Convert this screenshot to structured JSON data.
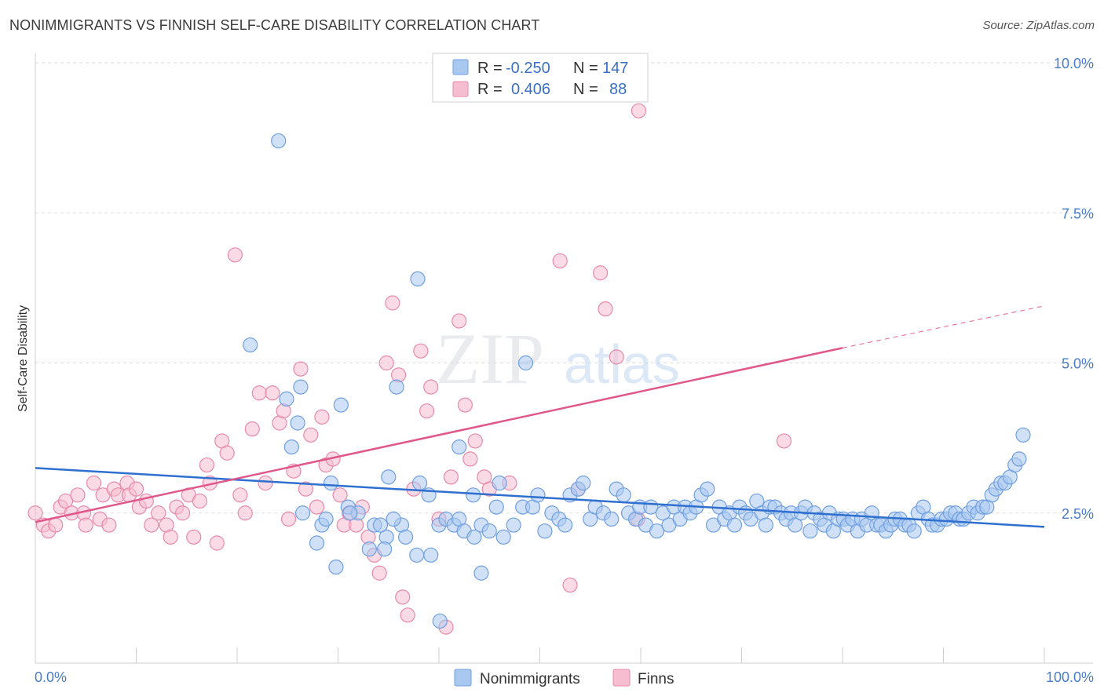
{
  "title": "NONIMMIGRANTS VS FINNISH SELF-CARE DISABILITY CORRELATION CHART",
  "source": "Source: ZipAtlas.com",
  "watermark": {
    "zip": "ZIP",
    "atlas": "atlas"
  },
  "colors": {
    "blue_fill": "#a9c8f0",
    "blue_stroke": "#6f9fe0",
    "blue_line": "#2e6fd0",
    "pink_fill": "#f6bdd0",
    "pink_stroke": "#e889aa",
    "pink_line": "#e0588a",
    "tick_text": "#4a7cc8",
    "grid": "#dddddd"
  },
  "legend": {
    "rows": [
      {
        "r_label": "R =",
        "r_value": "-0.250",
        "n_label": "N =",
        "n_value": "147"
      },
      {
        "r_label": "R =",
        "r_value": "0.406",
        "n_label": "N =",
        "n_value": "88"
      }
    ]
  },
  "chart_data": {
    "type": "scatter",
    "title": "NONIMMIGRANTS VS FINNISH SELF-CARE DISABILITY CORRELATION CHART",
    "xlabel": "",
    "ylabel": "Self-Care Disability",
    "xlim": [
      0,
      100
    ],
    "ylim": [
      0,
      10
    ],
    "x_tick_labels": [
      "0.0%",
      "100.0%"
    ],
    "y_ticks": [
      2.5,
      5.0,
      7.5,
      10.0
    ],
    "y_tick_labels": [
      "2.5%",
      "5.0%",
      "7.5%",
      "10.0%"
    ],
    "grid": true,
    "legend_position": "top-center",
    "series": [
      {
        "name": "Nonimmigrants",
        "color": "#a9c8f0",
        "trend": {
          "x": [
            0,
            100
          ],
          "y": [
            3.25,
            2.27
          ]
        },
        "points": [
          [
            24.1,
            8.7
          ],
          [
            37.9,
            6.4
          ],
          [
            21.3,
            5.3
          ],
          [
            35.8,
            4.6
          ],
          [
            24.9,
            4.4
          ],
          [
            26.3,
            4.6
          ],
          [
            30.3,
            4.3
          ],
          [
            48.6,
            5.0
          ],
          [
            25.4,
            3.6
          ],
          [
            26.0,
            4.0
          ],
          [
            42.0,
            3.6
          ],
          [
            29.3,
            3.0
          ],
          [
            38.1,
            3.0
          ],
          [
            35.0,
            3.1
          ],
          [
            46.0,
            3.0
          ],
          [
            39.0,
            2.8
          ],
          [
            43.4,
            2.8
          ],
          [
            45.7,
            2.6
          ],
          [
            31.0,
            2.6
          ],
          [
            26.5,
            2.5
          ],
          [
            28.4,
            2.3
          ],
          [
            32.0,
            2.5
          ],
          [
            33.6,
            2.3
          ],
          [
            34.8,
            2.1
          ],
          [
            36.3,
            2.3
          ],
          [
            36.7,
            2.1
          ],
          [
            34.6,
            1.9
          ],
          [
            37.8,
            1.8
          ],
          [
            39.2,
            1.8
          ],
          [
            40.0,
            2.3
          ],
          [
            40.7,
            2.4
          ],
          [
            41.5,
            2.3
          ],
          [
            42.0,
            2.4
          ],
          [
            42.5,
            2.2
          ],
          [
            43.5,
            2.1
          ],
          [
            44.2,
            2.3
          ],
          [
            45.0,
            2.2
          ],
          [
            46.4,
            2.1
          ],
          [
            47.4,
            2.3
          ],
          [
            48.3,
            2.6
          ],
          [
            49.3,
            2.6
          ],
          [
            49.8,
            2.8
          ],
          [
            50.5,
            2.2
          ],
          [
            51.2,
            2.5
          ],
          [
            51.9,
            2.4
          ],
          [
            52.5,
            2.3
          ],
          [
            53.0,
            2.8
          ],
          [
            53.8,
            2.9
          ],
          [
            54.3,
            3.0
          ],
          [
            55.0,
            2.4
          ],
          [
            55.5,
            2.6
          ],
          [
            56.3,
            2.5
          ],
          [
            57.1,
            2.4
          ],
          [
            57.6,
            2.9
          ],
          [
            58.3,
            2.8
          ],
          [
            58.8,
            2.5
          ],
          [
            59.5,
            2.4
          ],
          [
            59.9,
            2.6
          ],
          [
            60.5,
            2.3
          ],
          [
            61.0,
            2.6
          ],
          [
            61.6,
            2.2
          ],
          [
            62.2,
            2.5
          ],
          [
            62.8,
            2.3
          ],
          [
            63.3,
            2.6
          ],
          [
            63.9,
            2.4
          ],
          [
            64.4,
            2.6
          ],
          [
            64.9,
            2.5
          ],
          [
            65.5,
            2.6
          ],
          [
            66.0,
            2.8
          ],
          [
            66.6,
            2.9
          ],
          [
            67.2,
            2.3
          ],
          [
            67.8,
            2.6
          ],
          [
            68.3,
            2.4
          ],
          [
            68.8,
            2.5
          ],
          [
            69.3,
            2.3
          ],
          [
            69.8,
            2.6
          ],
          [
            70.4,
            2.5
          ],
          [
            70.9,
            2.4
          ],
          [
            71.5,
            2.7
          ],
          [
            72.0,
            2.5
          ],
          [
            72.4,
            2.3
          ],
          [
            72.8,
            2.6
          ],
          [
            73.3,
            2.6
          ],
          [
            73.9,
            2.5
          ],
          [
            74.4,
            2.4
          ],
          [
            74.9,
            2.5
          ],
          [
            75.3,
            2.3
          ],
          [
            75.9,
            2.5
          ],
          [
            76.3,
            2.6
          ],
          [
            76.8,
            2.2
          ],
          [
            77.2,
            2.5
          ],
          [
            77.8,
            2.4
          ],
          [
            78.2,
            2.3
          ],
          [
            78.7,
            2.5
          ],
          [
            79.1,
            2.2
          ],
          [
            79.6,
            2.4
          ],
          [
            80.1,
            2.4
          ],
          [
            80.5,
            2.3
          ],
          [
            81.0,
            2.4
          ],
          [
            81.5,
            2.2
          ],
          [
            81.9,
            2.4
          ],
          [
            82.4,
            2.3
          ],
          [
            82.9,
            2.5
          ],
          [
            83.4,
            2.3
          ],
          [
            83.8,
            2.3
          ],
          [
            84.3,
            2.2
          ],
          [
            84.8,
            2.3
          ],
          [
            85.2,
            2.4
          ],
          [
            85.7,
            2.4
          ],
          [
            86.2,
            2.3
          ],
          [
            86.6,
            2.3
          ],
          [
            87.1,
            2.2
          ],
          [
            87.5,
            2.5
          ],
          [
            88.0,
            2.6
          ],
          [
            88.5,
            2.4
          ],
          [
            88.9,
            2.3
          ],
          [
            89.4,
            2.3
          ],
          [
            89.8,
            2.4
          ],
          [
            90.3,
            2.4
          ],
          [
            90.7,
            2.5
          ],
          [
            91.2,
            2.5
          ],
          [
            91.6,
            2.4
          ],
          [
            92.0,
            2.4
          ],
          [
            92.5,
            2.5
          ],
          [
            93.0,
            2.6
          ],
          [
            93.4,
            2.5
          ],
          [
            93.9,
            2.6
          ],
          [
            94.3,
            2.6
          ],
          [
            94.8,
            2.8
          ],
          [
            95.2,
            2.9
          ],
          [
            95.7,
            3.0
          ],
          [
            96.1,
            3.0
          ],
          [
            96.6,
            3.1
          ],
          [
            97.1,
            3.3
          ],
          [
            97.5,
            3.4
          ],
          [
            97.9,
            3.8
          ],
          [
            40.1,
            0.7
          ],
          [
            44.2,
            1.5
          ],
          [
            29.8,
            1.6
          ],
          [
            27.9,
            2.0
          ],
          [
            33.1,
            1.9
          ],
          [
            31.2,
            2.5
          ],
          [
            28.8,
            2.4
          ],
          [
            34.2,
            2.3
          ],
          [
            35.5,
            2.4
          ]
        ]
      },
      {
        "name": "Finns",
        "color": "#f6bdd0",
        "trend": {
          "x": [
            0,
            80
          ],
          "y": [
            2.35,
            5.25
          ],
          "dashed_extension": {
            "x": [
              80,
              100
            ],
            "y": [
              5.25,
              5.95
            ]
          }
        },
        "points": [
          [
            0.0,
            2.5
          ],
          [
            0.8,
            2.3
          ],
          [
            1.3,
            2.2
          ],
          [
            2.0,
            2.3
          ],
          [
            2.5,
            2.6
          ],
          [
            3.0,
            2.7
          ],
          [
            3.6,
            2.5
          ],
          [
            4.2,
            2.8
          ],
          [
            4.8,
            2.5
          ],
          [
            5.0,
            2.3
          ],
          [
            5.8,
            3.0
          ],
          [
            6.4,
            2.4
          ],
          [
            6.7,
            2.8
          ],
          [
            7.3,
            2.3
          ],
          [
            7.8,
            2.9
          ],
          [
            8.2,
            2.8
          ],
          [
            9.1,
            3.0
          ],
          [
            9.3,
            2.8
          ],
          [
            10.0,
            2.9
          ],
          [
            10.3,
            2.6
          ],
          [
            11.0,
            2.7
          ],
          [
            11.5,
            2.3
          ],
          [
            12.2,
            2.5
          ],
          [
            13.0,
            2.3
          ],
          [
            13.4,
            2.1
          ],
          [
            14.0,
            2.6
          ],
          [
            14.6,
            2.5
          ],
          [
            15.2,
            2.8
          ],
          [
            15.7,
            2.1
          ],
          [
            16.3,
            2.7
          ],
          [
            17.0,
            3.3
          ],
          [
            17.3,
            3.0
          ],
          [
            18.0,
            2.0
          ],
          [
            18.5,
            3.7
          ],
          [
            19.0,
            3.5
          ],
          [
            19.8,
            6.8
          ],
          [
            20.3,
            2.8
          ],
          [
            20.8,
            2.5
          ],
          [
            21.5,
            3.9
          ],
          [
            22.2,
            4.5
          ],
          [
            22.8,
            3.0
          ],
          [
            23.5,
            4.5
          ],
          [
            24.2,
            4.0
          ],
          [
            24.6,
            4.2
          ],
          [
            25.1,
            2.4
          ],
          [
            25.6,
            3.2
          ],
          [
            26.3,
            4.9
          ],
          [
            26.8,
            2.9
          ],
          [
            27.3,
            3.8
          ],
          [
            27.9,
            2.6
          ],
          [
            28.4,
            4.1
          ],
          [
            28.8,
            3.3
          ],
          [
            29.5,
            3.4
          ],
          [
            30.2,
            2.8
          ],
          [
            30.6,
            2.3
          ],
          [
            31.1,
            2.5
          ],
          [
            31.8,
            2.3
          ],
          [
            32.4,
            2.6
          ],
          [
            33.0,
            2.1
          ],
          [
            33.6,
            1.8
          ],
          [
            34.1,
            1.5
          ],
          [
            34.8,
            5.0
          ],
          [
            35.4,
            6.0
          ],
          [
            36.0,
            4.8
          ],
          [
            36.4,
            1.1
          ],
          [
            36.9,
            0.8
          ],
          [
            37.5,
            2.9
          ],
          [
            38.2,
            5.2
          ],
          [
            38.8,
            4.2
          ],
          [
            39.2,
            4.6
          ],
          [
            40.0,
            2.4
          ],
          [
            40.7,
            0.6
          ],
          [
            41.2,
            3.1
          ],
          [
            42.0,
            5.7
          ],
          [
            42.6,
            4.3
          ],
          [
            43.1,
            3.4
          ],
          [
            43.6,
            3.7
          ],
          [
            44.5,
            3.1
          ],
          [
            45.0,
            2.9
          ],
          [
            47.0,
            3.0
          ],
          [
            52.0,
            6.7
          ],
          [
            53.0,
            1.3
          ],
          [
            53.8,
            2.9
          ],
          [
            56.0,
            6.5
          ],
          [
            56.5,
            5.9
          ],
          [
            57.6,
            5.1
          ],
          [
            59.7,
            2.4
          ],
          [
            59.8,
            9.2
          ],
          [
            74.2,
            3.7
          ]
        ]
      }
    ]
  },
  "bottom_legend": {
    "items": [
      "Nonimmigrants",
      "Finns"
    ]
  }
}
